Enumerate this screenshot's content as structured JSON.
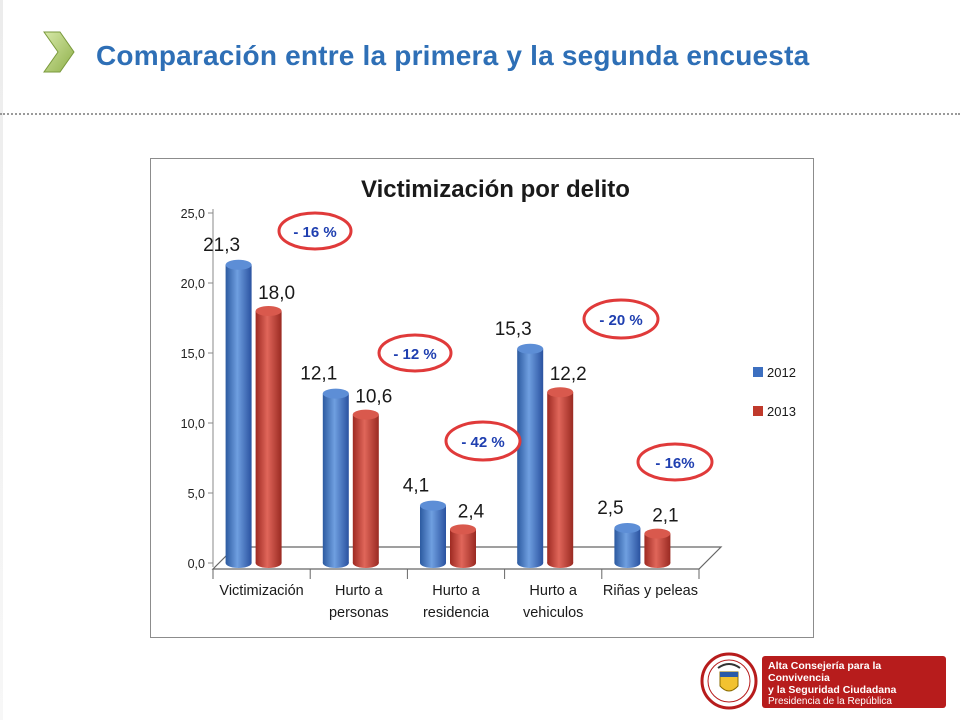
{
  "slide": {
    "title": "Comparación entre la primera y la segunda encuesta",
    "title_color": "#2e6fb6",
    "chevron_icon": "chevron-right-icon",
    "chevron_color": "#9bbb59"
  },
  "chart_data": {
    "type": "bar",
    "title": "Victimización por delito",
    "xlabel": "",
    "ylabel": "",
    "ylim": [
      0,
      25
    ],
    "yticks": [
      "0,0",
      "5,0",
      "10,0",
      "15,0",
      "20,0",
      "25,0"
    ],
    "yticks_values": [
      0,
      5,
      10,
      15,
      20,
      25
    ],
    "categories": [
      [
        "Victimización"
      ],
      [
        "Hurto a",
        "personas"
      ],
      [
        "Hurto a",
        "residencia"
      ],
      [
        "Hurto a",
        "vehiculos"
      ],
      [
        "Riñas y peleas"
      ]
    ],
    "series": [
      {
        "name": "2012",
        "color": "#3c6fc0",
        "values": [
          21.3,
          12.1,
          4.1,
          15.3,
          2.5
        ],
        "labels": [
          "21,3",
          "12,1",
          "4,1",
          "15,3",
          "2,5"
        ]
      },
      {
        "name": "2013",
        "color": "#c0392b",
        "values": [
          18.0,
          10.6,
          2.4,
          12.2,
          2.1
        ],
        "labels": [
          "18,0",
          "10,6",
          "2,4",
          "12,2",
          "2,1"
        ]
      }
    ],
    "legend_placement": "right",
    "grid": false,
    "annotations": [
      "- 16 %",
      "- 12 %",
      "- 42 %",
      "- 20 %",
      "- 16%"
    ],
    "annotation_style": {
      "ring_color": "#e03a3a",
      "text_color": "#1f3fb0"
    }
  },
  "footer": {
    "logo_line1": "Alta Consejería para la Convivencia",
    "logo_line2": "y la Seguridad Ciudadana",
    "logo_line3": "Presidencia de la República",
    "seal_icon": "colombia-coat-of-arms-icon",
    "logo_color": "#b71c1c"
  }
}
